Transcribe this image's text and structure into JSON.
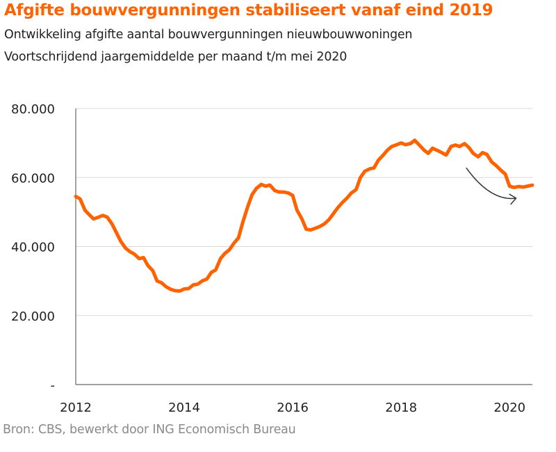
{
  "colors": {
    "accent": "#ff6200",
    "grid": "#d9d9d9",
    "axis": "#666666",
    "text": "#222222",
    "source": "#8a8a8a"
  },
  "title": "Afgifte bouwvergunningen stabiliseert vanaf eind 2019",
  "subtitle_1": "Ontwikkeling afgifte aantal bouwvergunningen nieuwbouwwoningen",
  "subtitle_2": "Voortschrijdend jaargemiddelde per maand t/m mei 2020",
  "source": "Bron: CBS, bewerkt door ING Economisch Bureau",
  "chart_data": {
    "type": "line",
    "x_ticks": [
      "2012",
      "2014",
      "2016",
      "2018",
      "2020"
    ],
    "y_ticks": [
      "-",
      "20.000",
      "40.000",
      "60.000",
      "80.000"
    ],
    "ylim": [
      0,
      80000
    ],
    "xlim": [
      2012.0,
      2020.42
    ],
    "grid": true,
    "annotations": [
      "curved-arrow"
    ],
    "series": [
      {
        "x": [
          2012.0,
          2012.08,
          2012.17,
          2012.25,
          2012.33,
          2012.42,
          2012.5,
          2012.58,
          2012.67,
          2012.75,
          2012.83,
          2012.92,
          2013.0,
          2013.08,
          2013.17,
          2013.25,
          2013.33,
          2013.42,
          2013.5,
          2013.58,
          2013.67,
          2013.75,
          2013.83,
          2013.92,
          2014.0,
          2014.08,
          2014.17,
          2014.25,
          2014.33,
          2014.42,
          2014.5,
          2014.58,
          2014.67,
          2014.75,
          2014.83,
          2014.92,
          2015.0,
          2015.08,
          2015.17,
          2015.25,
          2015.33,
          2015.42,
          2015.5,
          2015.58,
          2015.67,
          2015.75,
          2015.83,
          2015.92,
          2016.0,
          2016.08,
          2016.17,
          2016.25,
          2016.33,
          2016.42,
          2016.5,
          2016.58,
          2016.67,
          2016.75,
          2016.83,
          2016.92,
          2017.0,
          2017.08,
          2017.17,
          2017.25,
          2017.33,
          2017.42,
          2017.5,
          2017.58,
          2017.67,
          2017.75,
          2017.83,
          2017.92,
          2018.0,
          2018.08,
          2018.17,
          2018.25,
          2018.33,
          2018.42,
          2018.5,
          2018.58,
          2018.67,
          2018.75,
          2018.83,
          2018.92,
          2019.0,
          2019.08,
          2019.17,
          2019.25,
          2019.33,
          2019.42,
          2019.5,
          2019.58,
          2019.67,
          2019.75,
          2019.83,
          2019.92,
          2020.0,
          2020.08,
          2020.17,
          2020.25,
          2020.33,
          2020.42
        ],
        "y": [
          54500,
          53800,
          50500,
          49200,
          48000,
          48500,
          49000,
          48500,
          46500,
          44000,
          41500,
          39500,
          38500,
          37800,
          36500,
          36800,
          34500,
          33000,
          30000,
          29500,
          28300,
          27600,
          27200,
          27100,
          27700,
          27800,
          28900,
          29100,
          30000,
          30600,
          32500,
          33200,
          36500,
          38000,
          39000,
          41000,
          42500,
          47000,
          51500,
          55000,
          56800,
          58000,
          57500,
          57800,
          56200,
          55800,
          55800,
          55500,
          54800,
          50500,
          48000,
          45000,
          44800,
          45300,
          45800,
          46500,
          47800,
          49500,
          51200,
          52800,
          54000,
          55500,
          56500,
          60000,
          61800,
          62500,
          62800,
          65000,
          66500,
          68000,
          69000,
          69500,
          70000,
          69500,
          69800,
          70800,
          69500,
          68000,
          67000,
          68500,
          67800,
          67200,
          66500,
          69000,
          69400,
          69000,
          69800,
          68700,
          67000,
          66000,
          67200,
          66700,
          64500,
          63500,
          62200,
          61000,
          57500,
          57100,
          57400,
          57200,
          57500,
          57800
        ]
      }
    ]
  }
}
